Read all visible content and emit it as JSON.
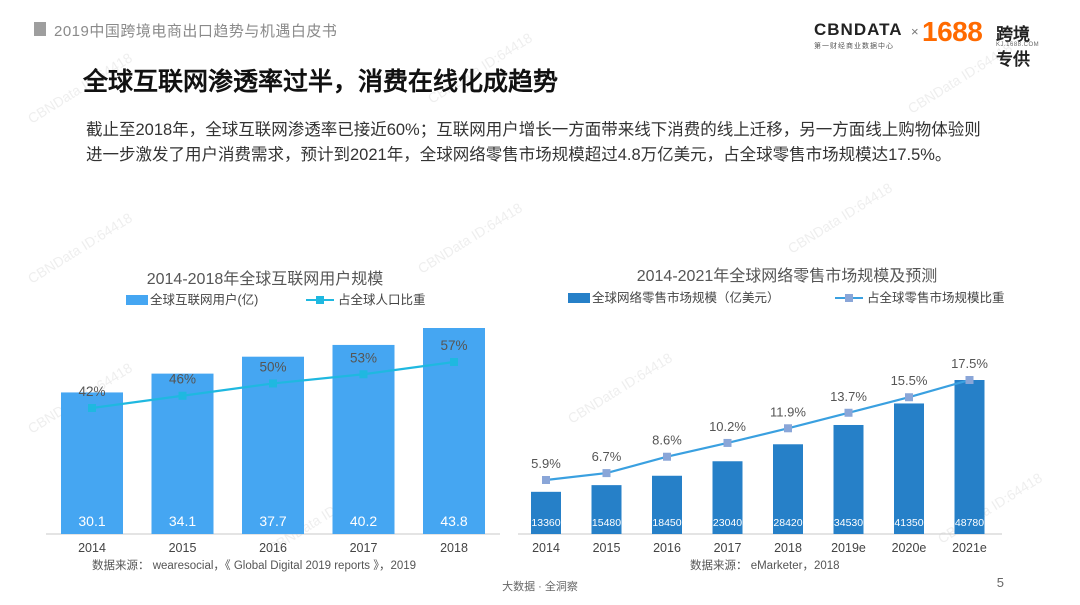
{
  "header": {
    "title": "2019中国跨境电商出口趋势与机遇白皮书"
  },
  "logo": {
    "cbn": "CBNDATA",
    "cbn_sub": "第一财经商业数据中心",
    "x": "×",
    "num": "1688",
    "brand": "跨境专供",
    "brand_sub": "KJ.1688.COM"
  },
  "main": {
    "title": "全球互联网渗透率过半，消费在线化成趋势",
    "description": "截止至2018年，全球互联网渗透率已接近60%；互联网用户增长一方面带来线下消费的线上迁移，另一方面线上购物体验则进一步激发了用户消费需求，预计到2021年，全球网络零售市场规模超过4.8万亿美元，占全球零售市场规模达17.5%。"
  },
  "watermark": "CBNData ID:64418",
  "colors": {
    "bar_left": "#45a6f2",
    "line_left": "#1fb8e0",
    "bar_right": "#2680c8",
    "line_right": "#3aa0e0",
    "marker_right": "#8aa6d8"
  },
  "chart_data": [
    {
      "type": "bar",
      "title": "2014-2018年全球互联网用户规模",
      "categories": [
        "2014",
        "2015",
        "2016",
        "2017",
        "2018"
      ],
      "series": [
        {
          "name": "全球互联网用户(亿)",
          "type": "bar",
          "values": [
            30.1,
            34.1,
            37.7,
            40.2,
            43.8
          ],
          "labels": [
            "30.1",
            "34.1",
            "37.7",
            "40.2",
            "43.8"
          ]
        },
        {
          "name": "占全球人口比重",
          "type": "line",
          "values": [
            42,
            46,
            50,
            53,
            57
          ],
          "labels": [
            "42%",
            "46%",
            "50%",
            "53%",
            "57%"
          ]
        }
      ],
      "ylim_bar": [
        0,
        50
      ],
      "ylim_line": [
        0,
        64
      ],
      "source": "数据来源：  wearesocial，《 Global Digital 2019 reports 》，2019"
    },
    {
      "type": "bar",
      "title": "2014-2021年全球网络零售市场规模及预测",
      "categories": [
        "2014",
        "2015",
        "2016",
        "2017",
        "2018",
        "2019e",
        "2020e",
        "2021e"
      ],
      "series": [
        {
          "name": "全球网络零售市场规模（亿美元）",
          "type": "bar",
          "values": [
            13360,
            15480,
            18450,
            23040,
            28420,
            34530,
            41350,
            48780
          ],
          "labels": [
            "13360",
            "15480",
            "18450",
            "23040",
            "28420",
            "34530",
            "41350",
            "48780"
          ]
        },
        {
          "name": "占全球零售市场规模比重",
          "type": "line",
          "values": [
            5.9,
            6.7,
            8.6,
            10.2,
            11.9,
            13.7,
            15.5,
            17.5
          ],
          "labels": [
            "5.9%",
            "6.7%",
            "8.6%",
            "10.2%",
            "11.9%",
            "13.7%",
            "15.5%",
            "17.5%"
          ]
        }
      ],
      "ylim_bar": [
        0,
        52000
      ],
      "ylim_line": [
        0,
        19
      ],
      "source": "数据来源：  eMarketer，2018"
    }
  ],
  "footer": {
    "text": "大数据 · 全洞察",
    "page": "5"
  }
}
